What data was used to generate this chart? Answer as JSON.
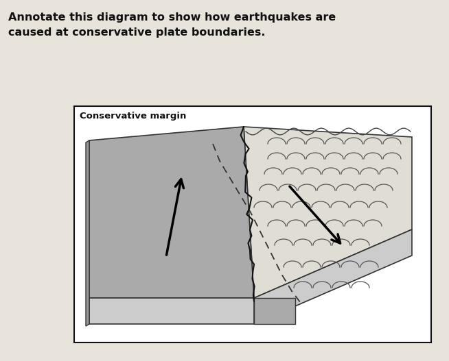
{
  "title_line1": "Annotate this diagram to show how earthquakes are",
  "title_line2": "caused at conservative plate boundaries.",
  "label_margin": "Conservative margin",
  "bg_color": "#e8e4dc",
  "box_bg": "#ffffff",
  "plate_left_top_color": "#aaaaaa",
  "plate_left_side_color": "#888888",
  "plate_left_bottom_color": "#bbbbbb",
  "plate_right_top_color": "#e8e4dc",
  "plate_right_side_color": "#c8c0b0",
  "plate_right_bottom_color": "#d0c8b8",
  "box_border_color": "#111111",
  "text_color": "#111111",
  "fault_color": "#111111"
}
